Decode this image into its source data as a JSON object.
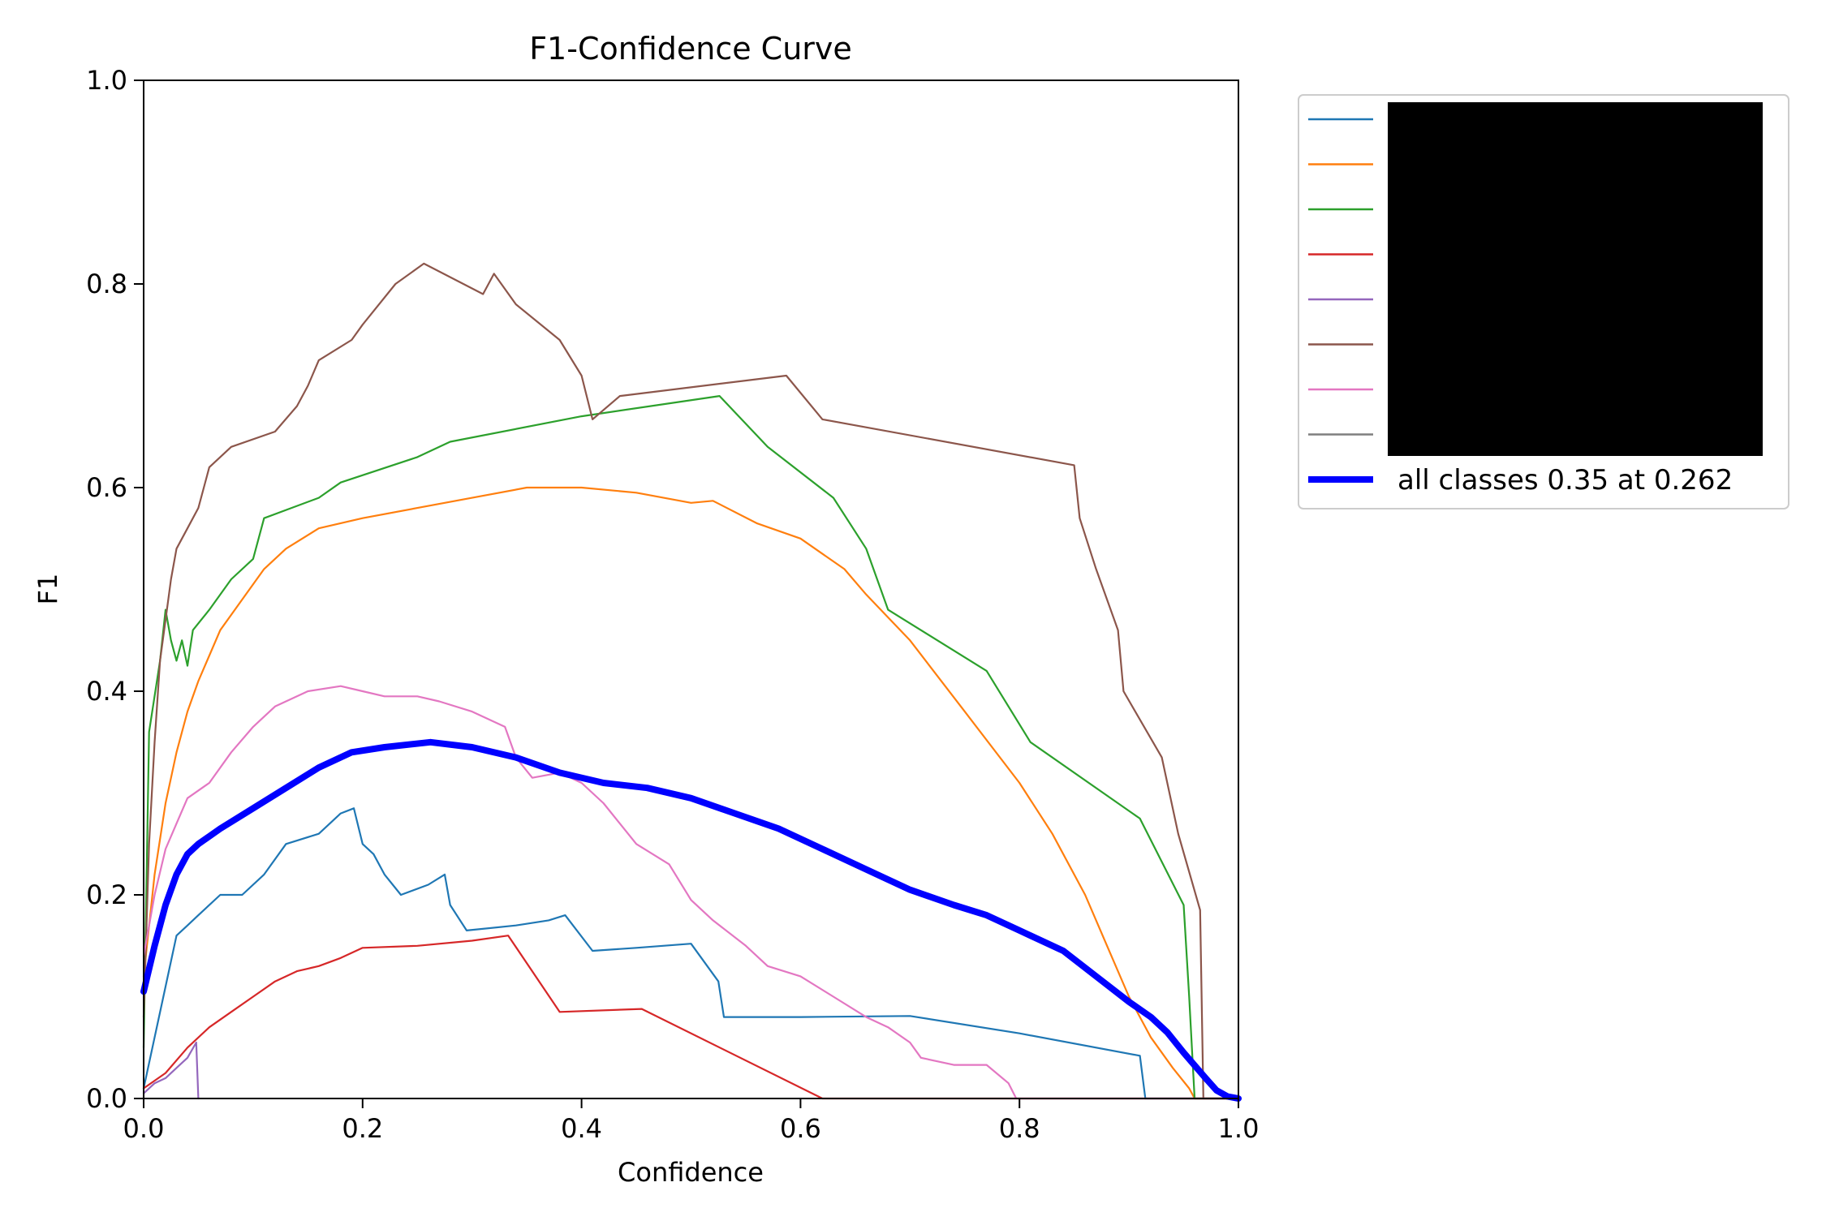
{
  "chart_data": {
    "type": "line",
    "title": "F1-Confidence Curve",
    "xlabel": "Confidence",
    "ylabel": "F1",
    "xlim": [
      0.0,
      1.0
    ],
    "ylim": [
      0.0,
      1.0
    ],
    "xticks": [
      "0.0",
      "0.2",
      "0.4",
      "0.6",
      "0.8",
      "1.0"
    ],
    "yticks": [
      "0.0",
      "0.2",
      "0.4",
      "0.6",
      "0.8",
      "1.0"
    ],
    "grid": false,
    "legend_position": "outside-right",
    "legend_redacted": true,
    "series": [
      {
        "color": "#1f77b4",
        "points": [
          [
            0,
            0.01
          ],
          [
            0.01,
            0.06
          ],
          [
            0.02,
            0.11
          ],
          [
            0.03,
            0.16
          ],
          [
            0.04,
            0.17
          ],
          [
            0.05,
            0.18
          ],
          [
            0.07,
            0.2
          ],
          [
            0.09,
            0.2
          ],
          [
            0.11,
            0.22
          ],
          [
            0.13,
            0.25
          ],
          [
            0.16,
            0.26
          ],
          [
            0.18,
            0.28
          ],
          [
            0.192,
            0.285
          ],
          [
            0.2,
            0.25
          ],
          [
            0.21,
            0.24
          ],
          [
            0.22,
            0.22
          ],
          [
            0.235,
            0.2
          ],
          [
            0.26,
            0.21
          ],
          [
            0.275,
            0.22
          ],
          [
            0.28,
            0.19
          ],
          [
            0.295,
            0.165
          ],
          [
            0.34,
            0.17
          ],
          [
            0.37,
            0.175
          ],
          [
            0.385,
            0.18
          ],
          [
            0.41,
            0.145
          ],
          [
            0.45,
            0.148
          ],
          [
            0.5,
            0.152
          ],
          [
            0.525,
            0.115
          ],
          [
            0.53,
            0.08
          ],
          [
            0.6,
            0.08
          ],
          [
            0.7,
            0.081
          ],
          [
            0.8,
            0.064
          ],
          [
            0.91,
            0.042
          ],
          [
            0.915,
            0.0
          ],
          [
            1.0,
            0.0
          ]
        ]
      },
      {
        "color": "#ff7f0e",
        "points": [
          [
            0,
            0.12
          ],
          [
            0.01,
            0.22
          ],
          [
            0.02,
            0.29
          ],
          [
            0.03,
            0.34
          ],
          [
            0.04,
            0.38
          ],
          [
            0.05,
            0.41
          ],
          [
            0.07,
            0.46
          ],
          [
            0.09,
            0.49
          ],
          [
            0.11,
            0.52
          ],
          [
            0.13,
            0.54
          ],
          [
            0.16,
            0.56
          ],
          [
            0.2,
            0.57
          ],
          [
            0.25,
            0.58
          ],
          [
            0.3,
            0.59
          ],
          [
            0.35,
            0.6
          ],
          [
            0.4,
            0.6
          ],
          [
            0.45,
            0.595
          ],
          [
            0.5,
            0.585
          ],
          [
            0.52,
            0.587
          ],
          [
            0.56,
            0.565
          ],
          [
            0.6,
            0.55
          ],
          [
            0.64,
            0.52
          ],
          [
            0.66,
            0.495
          ],
          [
            0.7,
            0.45
          ],
          [
            0.75,
            0.38
          ],
          [
            0.8,
            0.31
          ],
          [
            0.83,
            0.26
          ],
          [
            0.86,
            0.2
          ],
          [
            0.88,
            0.15
          ],
          [
            0.9,
            0.1
          ],
          [
            0.92,
            0.06
          ],
          [
            0.94,
            0.03
          ],
          [
            0.955,
            0.01
          ],
          [
            0.96,
            0.0
          ],
          [
            1.0,
            0.0
          ]
        ]
      },
      {
        "color": "#2ca02c",
        "points": [
          [
            0,
            0.05
          ],
          [
            0.005,
            0.36
          ],
          [
            0.015,
            0.43
          ],
          [
            0.02,
            0.48
          ],
          [
            0.025,
            0.45
          ],
          [
            0.03,
            0.43
          ],
          [
            0.035,
            0.45
          ],
          [
            0.04,
            0.425
          ],
          [
            0.045,
            0.46
          ],
          [
            0.06,
            0.48
          ],
          [
            0.08,
            0.51
          ],
          [
            0.1,
            0.53
          ],
          [
            0.11,
            0.57
          ],
          [
            0.16,
            0.59
          ],
          [
            0.18,
            0.605
          ],
          [
            0.25,
            0.63
          ],
          [
            0.28,
            0.645
          ],
          [
            0.4,
            0.67
          ],
          [
            0.526,
            0.69
          ],
          [
            0.57,
            0.64
          ],
          [
            0.63,
            0.59
          ],
          [
            0.66,
            0.54
          ],
          [
            0.68,
            0.48
          ],
          [
            0.77,
            0.42
          ],
          [
            0.81,
            0.35
          ],
          [
            0.91,
            0.275
          ],
          [
            0.95,
            0.19
          ],
          [
            0.955,
            0.1
          ],
          [
            0.96,
            0.0
          ],
          [
            1.0,
            0.0
          ]
        ]
      },
      {
        "color": "#d62728",
        "points": [
          [
            0,
            0.01
          ],
          [
            0.02,
            0.025
          ],
          [
            0.04,
            0.05
          ],
          [
            0.06,
            0.07
          ],
          [
            0.08,
            0.085
          ],
          [
            0.1,
            0.1
          ],
          [
            0.12,
            0.115
          ],
          [
            0.14,
            0.125
          ],
          [
            0.16,
            0.13
          ],
          [
            0.18,
            0.138
          ],
          [
            0.2,
            0.148
          ],
          [
            0.25,
            0.15
          ],
          [
            0.3,
            0.155
          ],
          [
            0.333,
            0.16
          ],
          [
            0.38,
            0.085
          ],
          [
            0.455,
            0.088
          ],
          [
            0.62,
            0.0
          ],
          [
            1.0,
            0.0
          ]
        ]
      },
      {
        "color": "#9467bd",
        "points": [
          [
            0,
            0.005
          ],
          [
            0.01,
            0.015
          ],
          [
            0.02,
            0.02
          ],
          [
            0.03,
            0.03
          ],
          [
            0.04,
            0.04
          ],
          [
            0.048,
            0.055
          ],
          [
            0.05,
            0.0
          ]
        ]
      },
      {
        "color": "#8c564b",
        "points": [
          [
            0,
            0.08
          ],
          [
            0.005,
            0.25
          ],
          [
            0.01,
            0.35
          ],
          [
            0.015,
            0.43
          ],
          [
            0.02,
            0.47
          ],
          [
            0.025,
            0.51
          ],
          [
            0.03,
            0.54
          ],
          [
            0.04,
            0.56
          ],
          [
            0.05,
            0.58
          ],
          [
            0.06,
            0.62
          ],
          [
            0.08,
            0.64
          ],
          [
            0.12,
            0.655
          ],
          [
            0.14,
            0.68
          ],
          [
            0.15,
            0.7
          ],
          [
            0.16,
            0.725
          ],
          [
            0.19,
            0.745
          ],
          [
            0.2,
            0.76
          ],
          [
            0.23,
            0.8
          ],
          [
            0.256,
            0.82
          ],
          [
            0.31,
            0.79
          ],
          [
            0.32,
            0.81
          ],
          [
            0.34,
            0.78
          ],
          [
            0.38,
            0.745
          ],
          [
            0.4,
            0.71
          ],
          [
            0.41,
            0.667
          ],
          [
            0.435,
            0.69
          ],
          [
            0.587,
            0.71
          ],
          [
            0.62,
            0.667
          ],
          [
            0.85,
            0.622
          ],
          [
            0.855,
            0.57
          ],
          [
            0.87,
            0.52
          ],
          [
            0.89,
            0.46
          ],
          [
            0.895,
            0.4
          ],
          [
            0.93,
            0.335
          ],
          [
            0.945,
            0.26
          ],
          [
            0.965,
            0.185
          ],
          [
            0.968,
            0.0
          ],
          [
            1.0,
            0.0
          ]
        ]
      },
      {
        "color": "#e377c2",
        "points": [
          [
            0,
            0.14
          ],
          [
            0.01,
            0.2
          ],
          [
            0.02,
            0.245
          ],
          [
            0.03,
            0.27
          ],
          [
            0.04,
            0.295
          ],
          [
            0.06,
            0.31
          ],
          [
            0.08,
            0.34
          ],
          [
            0.1,
            0.365
          ],
          [
            0.12,
            0.385
          ],
          [
            0.15,
            0.4
          ],
          [
            0.18,
            0.405
          ],
          [
            0.2,
            0.4
          ],
          [
            0.22,
            0.395
          ],
          [
            0.25,
            0.395
          ],
          [
            0.27,
            0.39
          ],
          [
            0.3,
            0.38
          ],
          [
            0.33,
            0.365
          ],
          [
            0.34,
            0.335
          ],
          [
            0.355,
            0.315
          ],
          [
            0.38,
            0.32
          ],
          [
            0.4,
            0.31
          ],
          [
            0.42,
            0.29
          ],
          [
            0.45,
            0.25
          ],
          [
            0.48,
            0.23
          ],
          [
            0.5,
            0.195
          ],
          [
            0.52,
            0.175
          ],
          [
            0.55,
            0.15
          ],
          [
            0.57,
            0.13
          ],
          [
            0.6,
            0.12
          ],
          [
            0.63,
            0.1
          ],
          [
            0.66,
            0.08
          ],
          [
            0.68,
            0.07
          ],
          [
            0.7,
            0.055
          ],
          [
            0.71,
            0.04
          ],
          [
            0.74,
            0.033
          ],
          [
            0.77,
            0.033
          ],
          [
            0.79,
            0.015
          ],
          [
            0.797,
            0.0
          ],
          [
            1.0,
            0.0
          ]
        ]
      },
      {
        "color": "#7f7f7f",
        "points": []
      },
      {
        "name": "all classes 0.35 at 0.262",
        "color": "#0000ff",
        "bold": true,
        "points": [
          [
            0,
            0.105
          ],
          [
            0.01,
            0.15
          ],
          [
            0.02,
            0.19
          ],
          [
            0.03,
            0.22
          ],
          [
            0.04,
            0.24
          ],
          [
            0.05,
            0.25
          ],
          [
            0.07,
            0.265
          ],
          [
            0.1,
            0.285
          ],
          [
            0.13,
            0.305
          ],
          [
            0.16,
            0.325
          ],
          [
            0.19,
            0.34
          ],
          [
            0.22,
            0.345
          ],
          [
            0.262,
            0.35
          ],
          [
            0.3,
            0.345
          ],
          [
            0.34,
            0.335
          ],
          [
            0.38,
            0.32
          ],
          [
            0.42,
            0.31
          ],
          [
            0.46,
            0.305
          ],
          [
            0.5,
            0.295
          ],
          [
            0.54,
            0.28
          ],
          [
            0.58,
            0.265
          ],
          [
            0.62,
            0.245
          ],
          [
            0.66,
            0.225
          ],
          [
            0.7,
            0.205
          ],
          [
            0.74,
            0.19
          ],
          [
            0.77,
            0.18
          ],
          [
            0.8,
            0.165
          ],
          [
            0.84,
            0.145
          ],
          [
            0.87,
            0.12
          ],
          [
            0.9,
            0.095
          ],
          [
            0.92,
            0.08
          ],
          [
            0.935,
            0.065
          ],
          [
            0.95,
            0.045
          ],
          [
            0.97,
            0.02
          ],
          [
            0.98,
            0.008
          ],
          [
            0.99,
            0.002
          ],
          [
            1.0,
            0.0
          ]
        ]
      }
    ]
  }
}
